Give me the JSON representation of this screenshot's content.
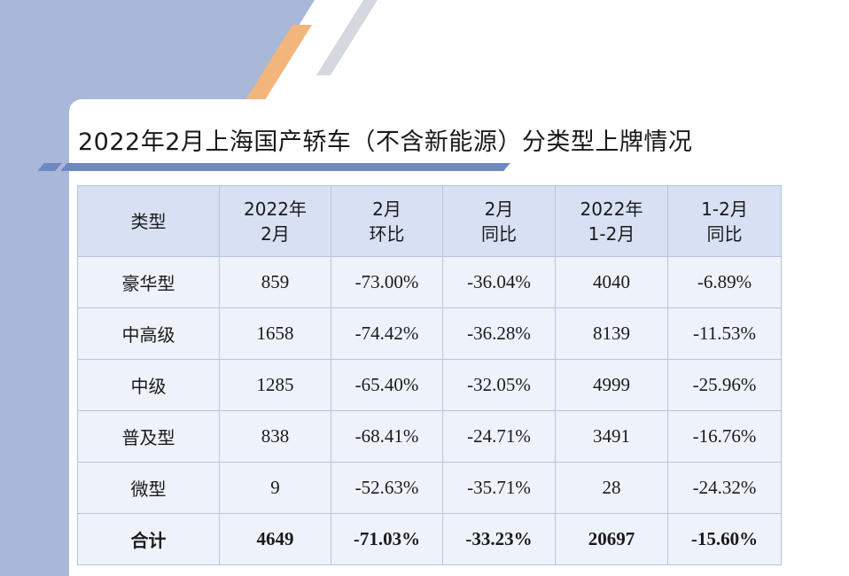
{
  "title": "2022年2月上海国产轿车（不含新能源）分类型上牌情况",
  "colors": {
    "left_block": "#a9b7d8",
    "accent_blue": "#6f88c2",
    "accent_orange": "#f2b57c",
    "header_bg": "#d8e1f3",
    "row_bg": "#eef2fa",
    "border": "#b7c3e0"
  },
  "table": {
    "headers": [
      {
        "line1": "类型",
        "line2": ""
      },
      {
        "line1": "2022年",
        "line2": "2月"
      },
      {
        "line1": "2月",
        "line2": "环比"
      },
      {
        "line1": "2月",
        "line2": "同比"
      },
      {
        "line1": "2022年",
        "line2": "1-2月"
      },
      {
        "line1": "1-2月",
        "line2": "同比"
      }
    ],
    "rows": [
      [
        "豪华型",
        "859",
        "-73.00%",
        "-36.04%",
        "4040",
        "-6.89%"
      ],
      [
        "中高级",
        "1658",
        "-74.42%",
        "-36.28%",
        "8139",
        "-11.53%"
      ],
      [
        "中级",
        "1285",
        "-65.40%",
        "-32.05%",
        "4999",
        "-25.96%"
      ],
      [
        "普及型",
        "838",
        "-68.41%",
        "-24.71%",
        "3491",
        "-16.76%"
      ],
      [
        "微型",
        "9",
        "-52.63%",
        "-35.71%",
        "28",
        "-24.32%"
      ]
    ],
    "total": [
      "合计",
      "4649",
      "-71.03%",
      "-33.23%",
      "20697",
      "-15.60%"
    ]
  }
}
